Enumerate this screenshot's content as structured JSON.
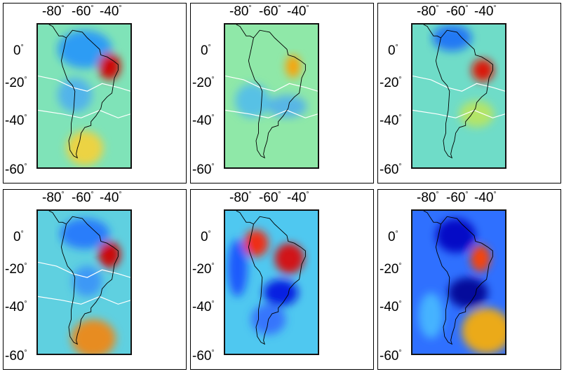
{
  "figure": {
    "columns": 3,
    "rows": 2,
    "lon_ticks": [
      "-80",
      "-60",
      "-40"
    ],
    "lat_ticks": [
      "0",
      "-20",
      "-40",
      "-60"
    ],
    "degree_symbol": "°",
    "colormap": [
      "#00008b",
      "#0000ff",
      "#1f8fff",
      "#3fd0f0",
      "#aef060",
      "#ffff30",
      "#ffb000",
      "#ff3000",
      "#b00000"
    ],
    "land_outline_color": "#000000",
    "contour_color": "#ffffff"
  },
  "panels": [
    {
      "id": "p1",
      "base": "#7fe3b8",
      "blobs": [
        {
          "lon": -62,
          "lat": 2,
          "rx": 22,
          "ry": 10,
          "c": "#1f8fff",
          "o": 0.85
        },
        {
          "lon": -42,
          "lat": -7,
          "rx": 9,
          "ry": 7,
          "c": "#d00000",
          "o": 0.95
        },
        {
          "lon": -70,
          "lat": -22,
          "rx": 14,
          "ry": 9,
          "c": "#3fa0ff",
          "o": 0.7
        },
        {
          "lon": -62,
          "lat": -50,
          "rx": 15,
          "ry": 9,
          "c": "#ffd030",
          "o": 0.85
        }
      ]
    },
    {
      "id": "p2",
      "base": "#8fe8a8",
      "blobs": [
        {
          "lon": -78,
          "lat": -25,
          "rx": 14,
          "ry": 9,
          "c": "#3fb0ff",
          "o": 0.7
        },
        {
          "lon": -45,
          "lat": -7,
          "rx": 6,
          "ry": 6,
          "c": "#ffa000",
          "o": 0.95
        },
        {
          "lon": -50,
          "lat": -28,
          "rx": 16,
          "ry": 6,
          "c": "#3fa0ff",
          "o": 0.7
        }
      ]
    },
    {
      "id": "p3",
      "base": "#6fdcc8",
      "blobs": [
        {
          "lon": -68,
          "lat": 8,
          "rx": 16,
          "ry": 7,
          "c": "#1060ff",
          "o": 0.8
        },
        {
          "lon": -43,
          "lat": -9,
          "rx": 9,
          "ry": 6,
          "c": "#e01000",
          "o": 0.95
        },
        {
          "lon": -48,
          "lat": -32,
          "rx": 14,
          "ry": 7,
          "c": "#d0e840",
          "o": 0.7
        }
      ]
    },
    {
      "id": "p4",
      "base": "#5fd0e0",
      "blobs": [
        {
          "lon": -62,
          "lat": 3,
          "rx": 20,
          "ry": 8,
          "c": "#1f6fff",
          "o": 0.85
        },
        {
          "lon": -42,
          "lat": -8,
          "rx": 9,
          "ry": 7,
          "c": "#d00000",
          "o": 0.95
        },
        {
          "lon": -55,
          "lat": -52,
          "rx": 18,
          "ry": 10,
          "c": "#ff8000",
          "o": 0.85
        },
        {
          "lon": -60,
          "lat": -22,
          "rx": 12,
          "ry": 8,
          "c": "#2f80ff",
          "o": 0.7
        }
      ]
    },
    {
      "id": "p5",
      "base": "#4fc8f0",
      "blobs": [
        {
          "lon": -75,
          "lat": -2,
          "rx": 10,
          "ry": 7,
          "c": "#ff2000",
          "o": 0.9
        },
        {
          "lon": -48,
          "lat": -10,
          "rx": 12,
          "ry": 8,
          "c": "#e00000",
          "o": 0.9
        },
        {
          "lon": -55,
          "lat": -28,
          "rx": 14,
          "ry": 7,
          "c": "#0010e0",
          "o": 0.9
        },
        {
          "lon": -90,
          "lat": -15,
          "rx": 8,
          "ry": 15,
          "c": "#1040ff",
          "o": 0.8
        },
        {
          "lon": -65,
          "lat": -42,
          "rx": 14,
          "ry": 8,
          "c": "#3060ff",
          "o": 0.8
        }
      ]
    },
    {
      "id": "p6",
      "base": "#2f70ff",
      "blobs": [
        {
          "lon": -65,
          "lat": 2,
          "rx": 16,
          "ry": 9,
          "c": "#0000c0",
          "o": 0.9
        },
        {
          "lon": -45,
          "lat": -10,
          "rx": 8,
          "ry": 7,
          "c": "#ff4000",
          "o": 0.95
        },
        {
          "lon": -55,
          "lat": -28,
          "rx": 16,
          "ry": 8,
          "c": "#000090",
          "o": 0.9
        },
        {
          "lon": -40,
          "lat": -48,
          "rx": 20,
          "ry": 12,
          "c": "#ffb000",
          "o": 0.9
        },
        {
          "lon": -85,
          "lat": -40,
          "rx": 10,
          "ry": 12,
          "c": "#4fd0ff",
          "o": 0.7
        }
      ]
    }
  ]
}
